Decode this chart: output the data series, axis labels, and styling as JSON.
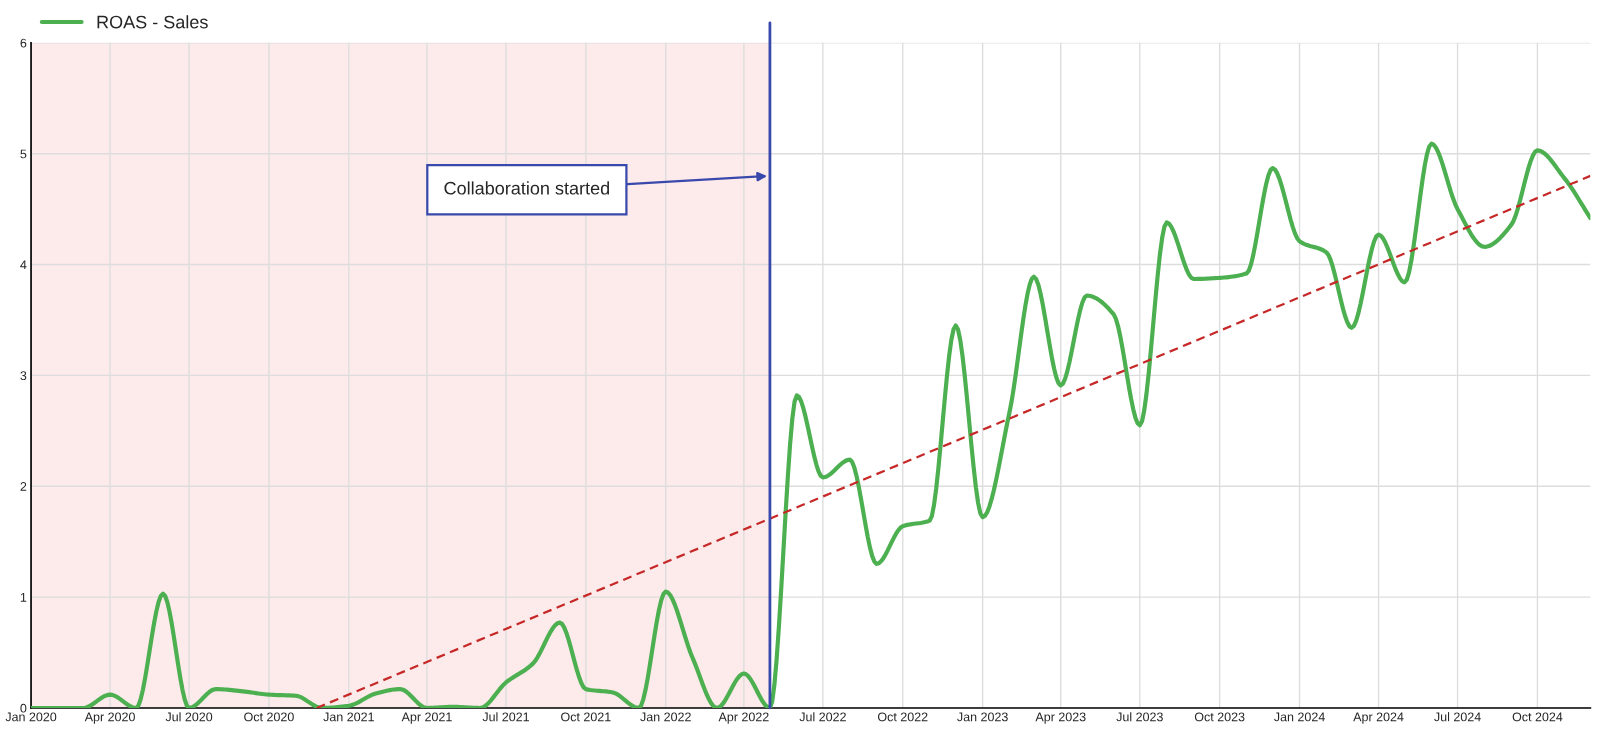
{
  "chart_data": {
    "type": "line",
    "x": [
      "2020-01",
      "2020-02",
      "2020-03",
      "2020-04",
      "2020-05",
      "2020-06",
      "2020-07",
      "2020-08",
      "2020-09",
      "2020-10",
      "2020-11",
      "2020-12",
      "2021-01",
      "2021-02",
      "2021-03",
      "2021-04",
      "2021-05",
      "2021-06",
      "2021-07",
      "2021-08",
      "2021-09",
      "2021-10",
      "2021-11",
      "2021-12",
      "2022-01",
      "2022-02",
      "2022-03",
      "2022-04",
      "2022-05",
      "2022-06",
      "2022-07",
      "2022-08",
      "2022-09",
      "2022-10",
      "2022-11",
      "2022-12",
      "2023-01",
      "2023-02",
      "2023-03",
      "2023-04",
      "2023-05",
      "2023-06",
      "2023-07",
      "2023-08",
      "2023-09",
      "2023-10",
      "2023-11",
      "2023-12",
      "2024-01",
      "2024-02",
      "2024-03",
      "2024-04",
      "2024-05",
      "2024-06",
      "2024-07",
      "2024-08",
      "2024-09",
      "2024-10",
      "2024-11",
      "2024-12"
    ],
    "series": [
      {
        "name": "ROAS - Sales",
        "color": "#4caf50",
        "values": [
          0,
          0,
          0,
          0.12,
          0,
          1.03,
          0,
          0.17,
          0.15,
          0.12,
          0.11,
          0,
          0.02,
          0.13,
          0.17,
          0,
          0.01,
          0,
          0.23,
          0.4,
          0.77,
          0.17,
          0.14,
          0,
          1.05,
          0.45,
          0,
          0.31,
          0,
          2.82,
          2.08,
          2.24,
          1.3,
          1.64,
          1.69,
          3.45,
          1.72,
          2.67,
          3.89,
          2.91,
          3.72,
          3.55,
          2.55,
          4.38,
          3.87,
          3.88,
          3.92,
          4.87,
          4.21,
          4.11,
          3.43,
          4.27,
          3.84,
          5.09,
          4.5,
          4.16,
          4.36,
          5.03,
          4.78,
          4.42
        ]
      },
      {
        "type": "line",
        "color": "#c62828",
        "line_style": "dashed",
        "x": [
          "2020-11-25",
          "2024-12-01"
        ],
        "values": [
          0,
          4.8
        ]
      }
    ],
    "xlim": [
      "2020-01",
      "2024-12"
    ],
    "xticks": [
      {
        "value": "2020-01",
        "label": "Jan 2020"
      },
      {
        "value": "2020-04",
        "label": "Apr 2020"
      },
      {
        "value": "2020-07",
        "label": "Jul 2020"
      },
      {
        "value": "2020-10",
        "label": "Oct 2020"
      },
      {
        "value": "2021-01",
        "label": "Jan 2021"
      },
      {
        "value": "2021-04",
        "label": "Apr 2021"
      },
      {
        "value": "2021-07",
        "label": "Jul 2021"
      },
      {
        "value": "2021-10",
        "label": "Oct 2021"
      },
      {
        "value": "2022-01",
        "label": "Jan 2022"
      },
      {
        "value": "2022-04",
        "label": "Apr 2022"
      },
      {
        "value": "2022-07",
        "label": "Jul 2022"
      },
      {
        "value": "2022-10",
        "label": "Oct 2022"
      },
      {
        "value": "2023-01",
        "label": "Jan 2023"
      },
      {
        "value": "2023-04",
        "label": "Apr 2023"
      },
      {
        "value": "2023-07",
        "label": "Jul 2023"
      },
      {
        "value": "2023-10",
        "label": "Oct 2023"
      },
      {
        "value": "2024-01",
        "label": "Jan 2024"
      },
      {
        "value": "2024-04",
        "label": "Apr 2024"
      },
      {
        "value": "2024-07",
        "label": "Jul 2024"
      },
      {
        "value": "2024-10",
        "label": "Oct 2024"
      }
    ],
    "ylim": [
      0,
      6
    ],
    "yticks": [
      0,
      1,
      2,
      3,
      4,
      5,
      6
    ],
    "bands": [
      {
        "axis": "x",
        "from": "2020-01",
        "to": "2022-05",
        "color": "#fdeaea"
      }
    ],
    "ref_lines": [
      {
        "axis": "x",
        "value": "2022-05",
        "color": "#3949ab",
        "line_style": "solid",
        "label": "Collaboration started"
      }
    ],
    "grid": true,
    "legend": "top left",
    "marker": "none",
    "line_style": "solid"
  }
}
